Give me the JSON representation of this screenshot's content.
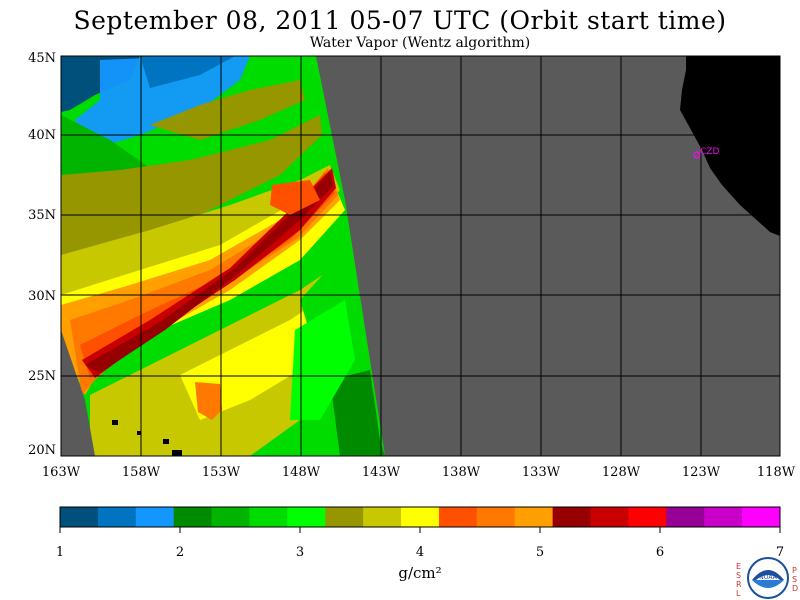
{
  "header": {
    "title": "September 08, 2011  05-07 UTC  (Orbit start time)",
    "subtitle": "Water Vapor (Wentz algorithm)"
  },
  "map": {
    "latitude_labels": [
      "45N",
      "40N",
      "35N",
      "30N",
      "25N",
      "20N"
    ],
    "longitude_labels": [
      "163W",
      "158W",
      "153W",
      "148W",
      "143W",
      "138W",
      "133W",
      "128W",
      "123W",
      "118W"
    ],
    "station_label": "CZD",
    "colors": {
      "no_data": "#5a5a5a",
      "land": "#000000",
      "grid": "#000000",
      "station": "#ff00ff"
    }
  },
  "colorbar": {
    "tick_labels": [
      "1",
      "2",
      "3",
      "4",
      "5",
      "6",
      "7"
    ],
    "unit": "g/cm²",
    "colors": [
      "#00507c",
      "#0074c0",
      "#1496ff",
      "#008a00",
      "#00b400",
      "#00dc00",
      "#00ff00",
      "#969600",
      "#c8c800",
      "#ffff00",
      "#ff5000",
      "#ff7800",
      "#ffa000",
      "#960000",
      "#c80000",
      "#ff0000",
      "#960096",
      "#c800c8",
      "#ff00ff"
    ]
  },
  "logo": {
    "text": "NOAA",
    "left_letters": [
      "E",
      "S",
      "R",
      "L"
    ],
    "right_letters": [
      "P",
      "S",
      "D"
    ]
  }
}
